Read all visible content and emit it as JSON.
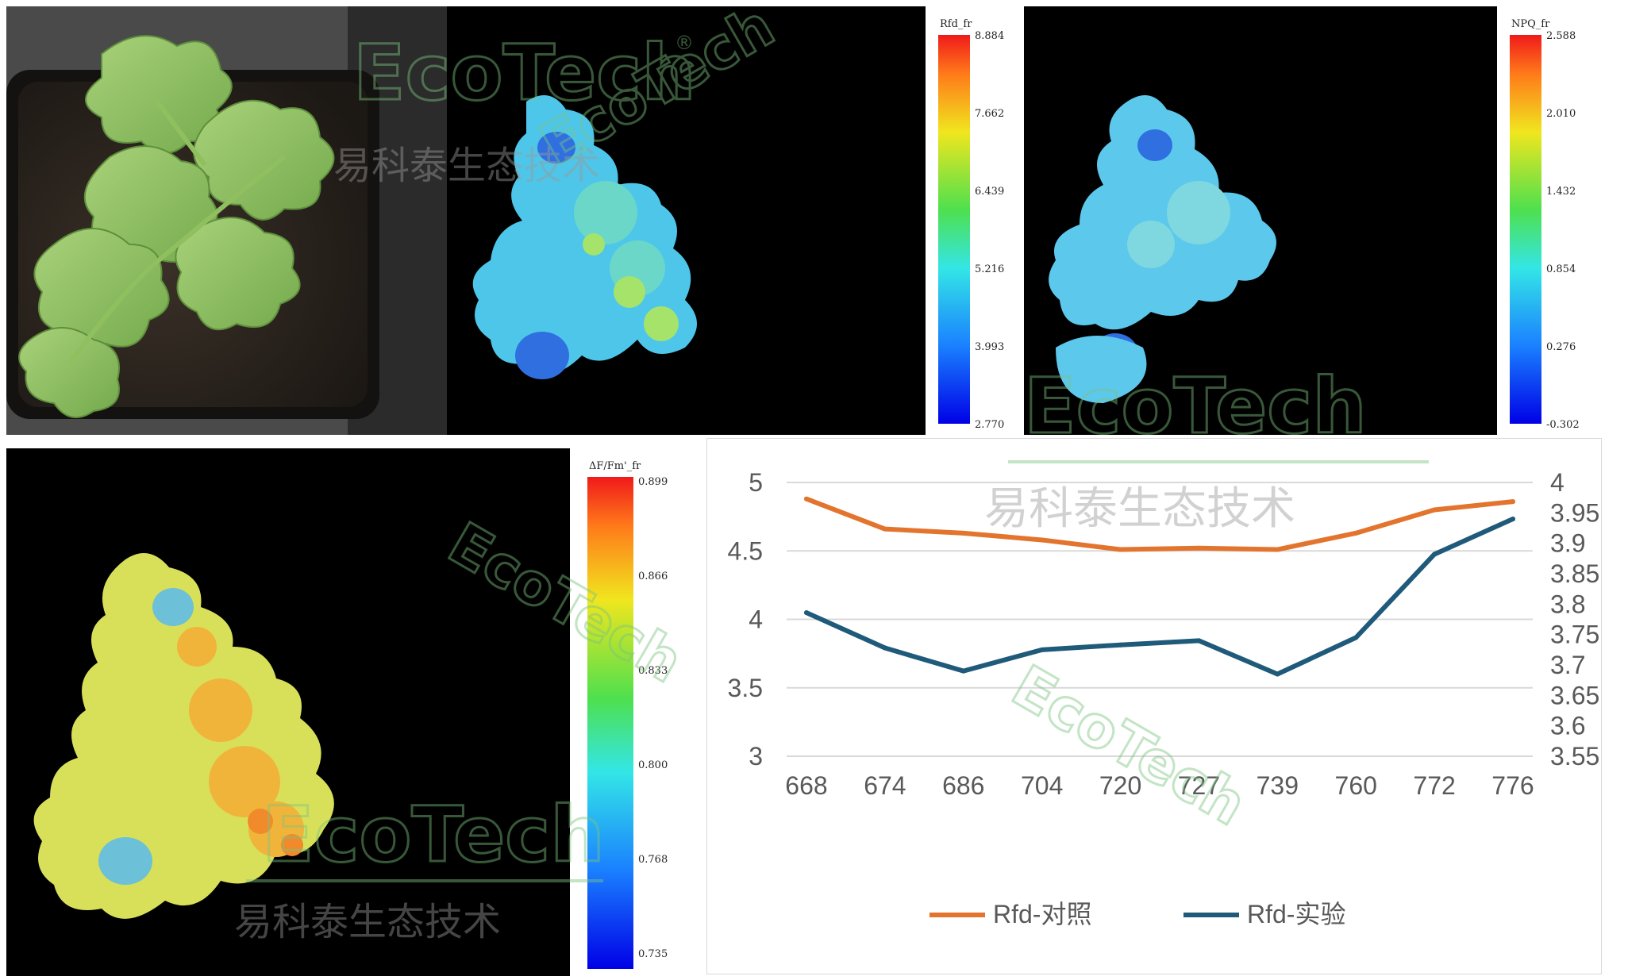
{
  "panels": {
    "rfd_map": {
      "colorbar_title": "Rfd_fr",
      "ticks": [
        "8.884",
        "7.662",
        "6.439",
        "5.216",
        "3.993",
        "2.770"
      ]
    },
    "npq_map": {
      "colorbar_title": "NPQ_fr",
      "ticks": [
        "2.588",
        "2.010",
        "1.432",
        "0.854",
        "0.276",
        "-0.302"
      ]
    },
    "fvfm_map": {
      "colorbar_title": "ΔF/Fm'_fr",
      "ticks": [
        "0.899",
        "0.866",
        "0.833",
        "0.800",
        "0.768",
        "0.735"
      ]
    }
  },
  "watermark": {
    "brand": "EcoTech",
    "registered": "®",
    "cn": "易科泰生态技术"
  },
  "colors": {
    "series_control": "#E3742E",
    "series_experiment": "#1F5A7A",
    "grid": "#d9d9d9",
    "axis_text": "#595959",
    "watermark": "#7cc47f"
  },
  "chart_data": {
    "type": "line",
    "categories": [
      "668",
      "674",
      "686",
      "704",
      "720",
      "727",
      "739",
      "760",
      "772",
      "776"
    ],
    "series": [
      {
        "name": "Rfd-对照",
        "axis": "left",
        "values": [
          4.88,
          4.66,
          4.63,
          4.58,
          4.51,
          4.52,
          4.51,
          4.63,
          4.8,
          4.86
        ]
      },
      {
        "name": "Rfd-实验",
        "axis": "right",
        "values": [
          3.786,
          3.728,
          3.69,
          3.725,
          3.733,
          3.74,
          3.685,
          3.745,
          3.882,
          3.94
        ]
      }
    ],
    "y_left": {
      "ylim": [
        3,
        5
      ],
      "ticks": [
        "5",
        "4.5",
        "4",
        "3.5",
        "3"
      ]
    },
    "y_right": {
      "ylim": [
        3.55,
        4
      ],
      "ticks": [
        "4",
        "3.95",
        "3.9",
        "3.85",
        "3.8",
        "3.75",
        "3.7",
        "3.65",
        "3.6",
        "3.55"
      ]
    },
    "legend_position": "bottom",
    "grid": true
  }
}
